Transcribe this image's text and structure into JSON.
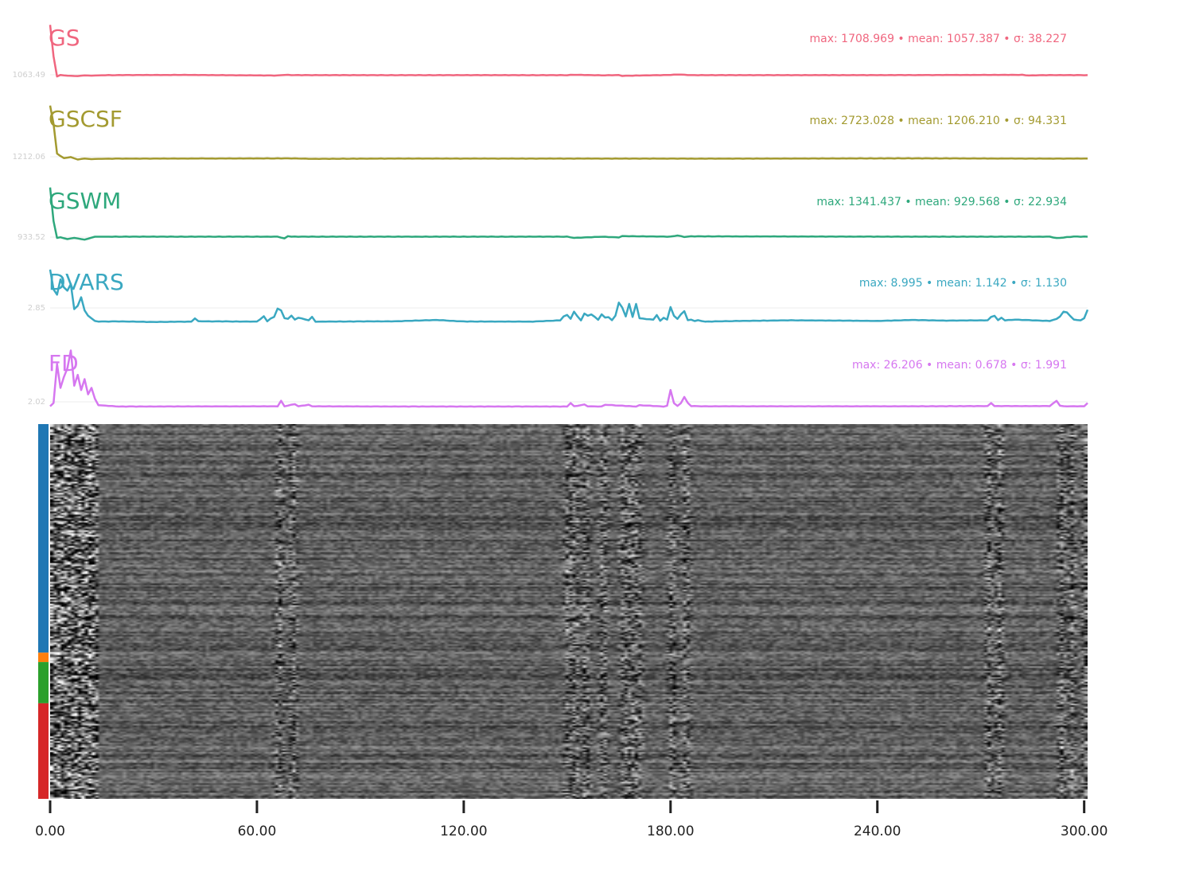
{
  "chart_data": {
    "type": "line",
    "x_range": [
      0,
      301
    ],
    "x_ticks": [
      "0.00",
      "60.00",
      "120.00",
      "180.00",
      "240.00",
      "300.00"
    ],
    "panels": [
      {
        "name": "GS",
        "color": "#f0667f",
        "ref_label": "1063.49",
        "stats": "max: 1708.969 • mean: 1057.387 • σ: 38.227",
        "baseline": 1057.4,
        "y_range": [
          1000,
          1720
        ],
        "x": [
          0,
          1,
          2,
          3,
          5,
          8,
          10,
          12,
          14,
          20,
          40,
          66,
          68,
          70,
          80,
          150,
          152,
          160,
          165,
          166,
          170,
          180,
          182,
          186,
          200,
          250,
          282,
          284,
          290,
          300,
          301
        ],
        "y": [
          1708,
          1300,
          1040,
          1060,
          1050,
          1045,
          1055,
          1050,
          1055,
          1058,
          1060,
          1052,
          1061,
          1058,
          1057,
          1057,
          1062,
          1055,
          1058,
          1048,
          1052,
          1060,
          1066,
          1057,
          1057,
          1058,
          1061,
          1053,
          1058,
          1057,
          1058
        ]
      },
      {
        "name": "GSCSF",
        "color": "#a39a30",
        "ref_label": "1212.06",
        "stats": "max: 2723.028 • mean: 1206.210 • σ: 94.331",
        "baseline": 1206.2,
        "y_range": [
          1100,
          2740
        ],
        "x": [
          0,
          1,
          2,
          3,
          4,
          6,
          8,
          10,
          12,
          14,
          20,
          70,
          77,
          100,
          200,
          250,
          290,
          301
        ],
        "y": [
          2723,
          2200,
          1350,
          1280,
          1220,
          1250,
          1180,
          1210,
          1190,
          1200,
          1206,
          1212,
          1200,
          1208,
          1206,
          1214,
          1206,
          1208
        ]
      },
      {
        "name": "GSWM",
        "color": "#2ea87c",
        "ref_label": "933.52",
        "stats": "max: 1341.437 • mean: 929.568 • σ: 22.934",
        "baseline": 929.6,
        "y_range": [
          880,
          1345
        ],
        "x": [
          0,
          1,
          2,
          3,
          5,
          7,
          10,
          13,
          66,
          68,
          69,
          70,
          150,
          152,
          160,
          165,
          166,
          180,
          182,
          184,
          186,
          250,
          290,
          292,
          297,
          301
        ],
        "y": [
          1341,
          1060,
          920,
          925,
          910,
          920,
          905,
          930,
          930,
          915,
          935,
          930,
          930,
          920,
          930,
          924,
          935,
          930,
          940,
          928,
          933,
          930,
          930,
          918,
          931,
          930
        ]
      },
      {
        "name": "DVARS",
        "color": "#3aa8c1",
        "ref_label": "2.85",
        "stats": "max: 8.995 • mean: 1.142 • σ: 1.130",
        "baseline": 1.142,
        "y_range": [
          0.4,
          9.1
        ],
        "x": [
          0,
          1,
          2,
          3,
          4,
          5,
          6,
          7,
          8,
          9,
          10,
          11,
          12,
          13,
          14,
          15,
          20,
          30,
          41,
          42,
          43,
          60,
          61,
          62,
          63,
          64,
          65,
          66,
          67,
          68,
          69,
          70,
          71,
          72,
          75,
          76,
          77,
          100,
          112,
          120,
          140,
          148,
          149,
          150,
          151,
          152,
          153,
          154,
          155,
          156,
          157,
          158,
          159,
          160,
          161,
          162,
          163,
          164,
          165,
          166,
          167,
          168,
          169,
          170,
          171,
          175,
          176,
          177,
          178,
          179,
          180,
          181,
          182,
          183,
          184,
          185,
          186,
          187,
          188,
          190,
          200,
          215,
          230,
          240,
          250,
          260,
          272,
          273,
          274,
          275,
          276,
          277,
          280,
          285,
          290,
          292,
          293,
          294,
          295,
          297,
          299,
          300,
          301
        ],
        "y": [
          9.0,
          6.0,
          5.2,
          7.5,
          6.3,
          5.8,
          6.8,
          3.0,
          3.5,
          4.8,
          2.8,
          2.0,
          1.6,
          1.2,
          1.1,
          1.12,
          1.13,
          1.05,
          1.1,
          1.6,
          1.15,
          1.1,
          1.5,
          1.9,
          1.15,
          1.6,
          1.8,
          3.1,
          2.8,
          1.6,
          1.55,
          2.0,
          1.4,
          1.7,
          1.3,
          1.8,
          1.1,
          1.15,
          1.35,
          1.12,
          1.1,
          1.3,
          1.9,
          2.1,
          1.55,
          2.6,
          1.9,
          1.3,
          2.3,
          2.0,
          2.2,
          1.8,
          1.4,
          2.2,
          1.7,
          1.8,
          1.3,
          2.0,
          4.0,
          3.2,
          1.9,
          3.8,
          1.8,
          3.8,
          1.6,
          1.4,
          2.1,
          1.2,
          1.7,
          1.4,
          3.3,
          2.0,
          1.5,
          2.2,
          2.7,
          1.3,
          1.4,
          1.2,
          1.3,
          1.1,
          1.2,
          1.3,
          1.25,
          1.2,
          1.35,
          1.25,
          1.3,
          1.8,
          2.0,
          1.3,
          1.7,
          1.3,
          1.4,
          1.3,
          1.2,
          1.5,
          1.9,
          2.6,
          2.5,
          1.4,
          1.3,
          1.6,
          2.9
        ]
      },
      {
        "name": "FD",
        "color": "#d677f0",
        "ref_label": "2.02",
        "stats": "max: 26.206 • mean: 0.678 • σ: 1.991",
        "baseline": 0.678,
        "y_range": [
          0,
          26.4
        ],
        "x": [
          0,
          1,
          2,
          3,
          4,
          5,
          6,
          7,
          8,
          9,
          10,
          11,
          12,
          13,
          14,
          20,
          66,
          67,
          68,
          71,
          72,
          75,
          76,
          100,
          150,
          151,
          152,
          155,
          156,
          160,
          161,
          170,
          171,
          178,
          179,
          180,
          181,
          182,
          183,
          184,
          185,
          186,
          190,
          250,
          272,
          273,
          274,
          290,
          292,
          293,
          294,
          300,
          301
        ],
        "y": [
          0.5,
          2.0,
          20.0,
          9.0,
          14.0,
          18.0,
          26.2,
          10.0,
          15.0,
          8.0,
          13.0,
          6.0,
          9.0,
          4.0,
          1.0,
          0.4,
          0.5,
          3.0,
          0.5,
          1.5,
          0.5,
          1.2,
          0.5,
          0.4,
          0.4,
          2.0,
          0.5,
          1.3,
          0.5,
          0.4,
          1.2,
          0.4,
          1.0,
          0.4,
          0.7,
          8.0,
          2.0,
          0.6,
          2.0,
          4.8,
          2.0,
          0.6,
          0.5,
          0.5,
          0.6,
          2.0,
          0.6,
          0.6,
          3.0,
          0.8,
          0.5,
          0.5,
          2.0
        ]
      }
    ],
    "carpet": {
      "segments": [
        {
          "color": "#1f77b4",
          "fraction": 0.61
        },
        {
          "color": "#ff7f0e",
          "fraction": 0.025
        },
        {
          "color": "#2ca02c",
          "fraction": 0.11
        },
        {
          "color": "#d62728",
          "fraction": 0.255
        }
      ],
      "motion_events": [
        0,
        2,
        5,
        8,
        11,
        66,
        70,
        150,
        152,
        155,
        160,
        166,
        168,
        170,
        180,
        184,
        272,
        275,
        293,
        296,
        300
      ]
    }
  }
}
